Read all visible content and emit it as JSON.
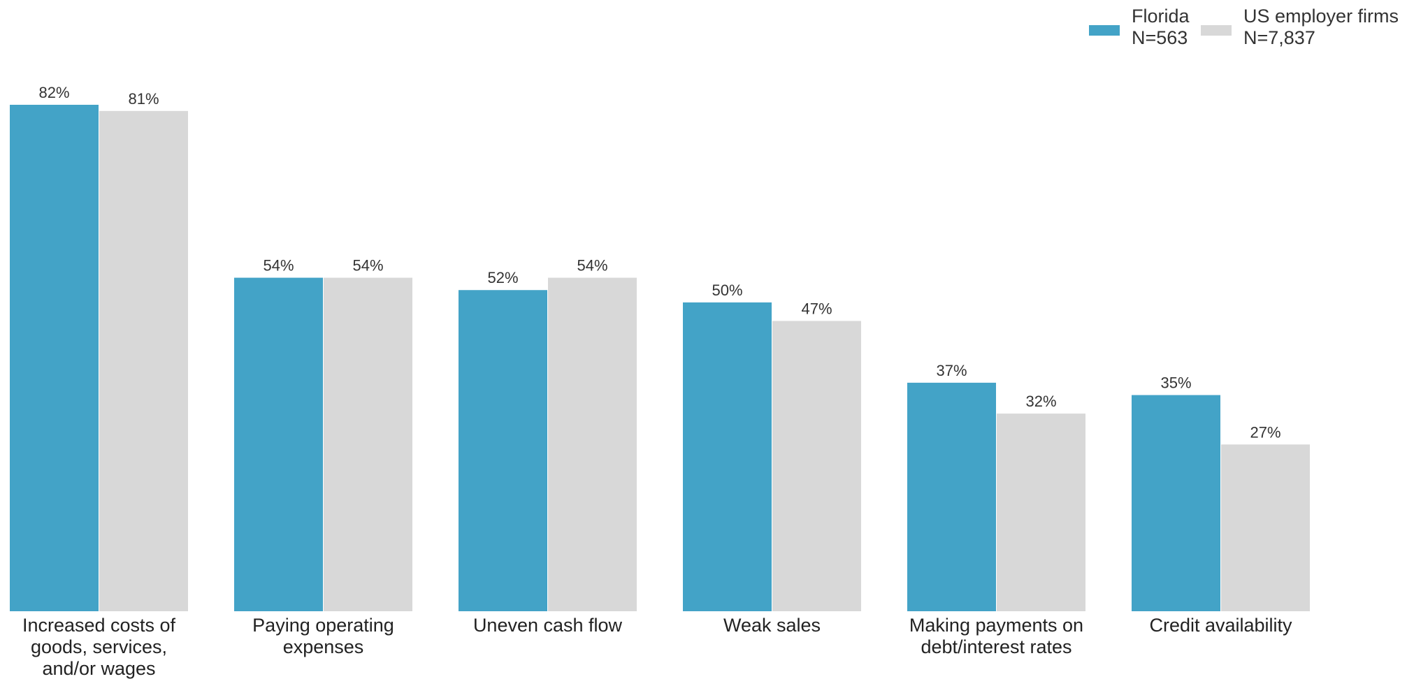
{
  "chart_data": {
    "type": "bar",
    "categories": [
      [
        "Increased costs of",
        "goods, services,",
        "and/or wages"
      ],
      [
        "Paying operating",
        "expenses"
      ],
      [
        "Uneven cash flow"
      ],
      [
        "Weak sales"
      ],
      [
        "Making payments on",
        "debt/interest rates"
      ],
      [
        "Credit availability"
      ]
    ],
    "series": [
      {
        "name": [
          "Florida",
          "N=563"
        ],
        "color": "#43a3c7",
        "values": [
          82,
          54,
          52,
          50,
          37,
          35
        ],
        "labels": [
          "82%",
          "54%",
          "52%",
          "50%",
          "37%",
          "35%"
        ]
      },
      {
        "name": [
          "US employer firms",
          "N=7,837"
        ],
        "color": "#d8d8d8",
        "values": [
          81,
          54,
          54,
          47,
          32,
          27
        ],
        "labels": [
          "81%",
          "54%",
          "54%",
          "47%",
          "32%",
          "27%"
        ]
      }
    ],
    "ylim": [
      0,
      82
    ],
    "legend_position": "top-right",
    "grid": false
  }
}
